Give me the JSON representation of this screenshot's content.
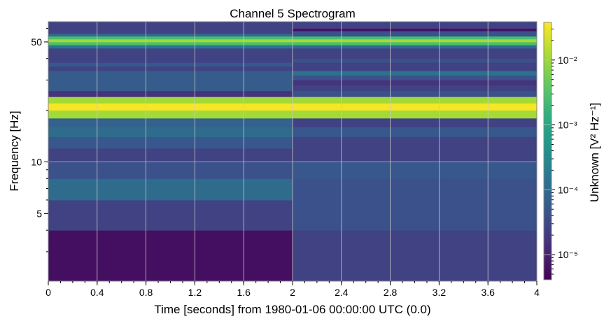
{
  "chart_data": {
    "type": "heatmap",
    "title": "Channel 5 Spectrogram",
    "xlabel": "Time [seconds] from 1980-01-06 00:00:00 UTC (0.0)",
    "ylabel": "Frequency [Hz]",
    "colorbar_label": "Unknown [V² Hz⁻¹]",
    "colormap": "viridis",
    "xlim": [
      0,
      4
    ],
    "ylim": [
      2.02,
      65.6
    ],
    "yscale": "log",
    "color_scale": "log",
    "clim": [
      4.1e-06,
      0.038
    ],
    "grid": true,
    "x_ticks": [
      0,
      0.4,
      0.8,
      1.2,
      1.6,
      2,
      2.4,
      2.8,
      3.2,
      3.6,
      4
    ],
    "x_tick_labels": [
      "0",
      "0.4",
      "0.8",
      "1.2",
      "1.6",
      "2",
      "2.4",
      "2.8",
      "3.2",
      "3.6",
      "4"
    ],
    "y_ticks": [
      5,
      10,
      50
    ],
    "y_tick_labels": [
      "5",
      "10",
      "50"
    ],
    "colorbar_ticks": [
      0.01,
      0.001,
      0.0001,
      1e-05
    ],
    "colorbar_tick_labels": [
      "10⁻²",
      "10⁻³",
      "10⁻⁴",
      "10⁻⁵"
    ],
    "time_edges": [
      0,
      2,
      4
    ],
    "frequency_edges": [
      2,
      4,
      6,
      8,
      10,
      12,
      14,
      16,
      18,
      20,
      22,
      24,
      26,
      28,
      30,
      32,
      34,
      36,
      38,
      40,
      42,
      44,
      46,
      48,
      50,
      52,
      54,
      56,
      58,
      60,
      62,
      64,
      66
    ],
    "values": [
      [
        6e-06,
        2.5e-05,
        0.0001,
        4e-05,
        2.5e-05,
        5e-05,
        0.0001,
        7.5e-05,
        0.011,
        0.035,
        0.011,
        1.6e-05,
        6e-05,
        6e-05,
        6e-05,
        6e-05,
        2.5e-05,
        5e-05,
        2.5e-05,
        2.5e-05,
        2.5e-05,
        2.5e-05,
        0.00015,
        0.0025,
        0.011,
        0.0025,
        0.0001,
        2.5e-05,
        2.5e-05,
        2.5e-05,
        2.5e-05,
        2.5e-05
      ],
      [
        2.5e-05,
        4e-05,
        4e-05,
        5e-05,
        2.5e-05,
        2.5e-05,
        5e-05,
        2.5e-05,
        0.011,
        0.035,
        0.011,
        4e-05,
        2.5e-05,
        1.6e-05,
        4e-05,
        0.00013,
        2.5e-05,
        2.5e-05,
        4e-05,
        2.5e-05,
        2.5e-05,
        2.5e-05,
        0.0001,
        0.0025,
        0.011,
        0.0025,
        4e-05,
        4e-05,
        6e-06,
        2.5e-05,
        2.5e-05,
        2.5e-05
      ]
    ]
  }
}
